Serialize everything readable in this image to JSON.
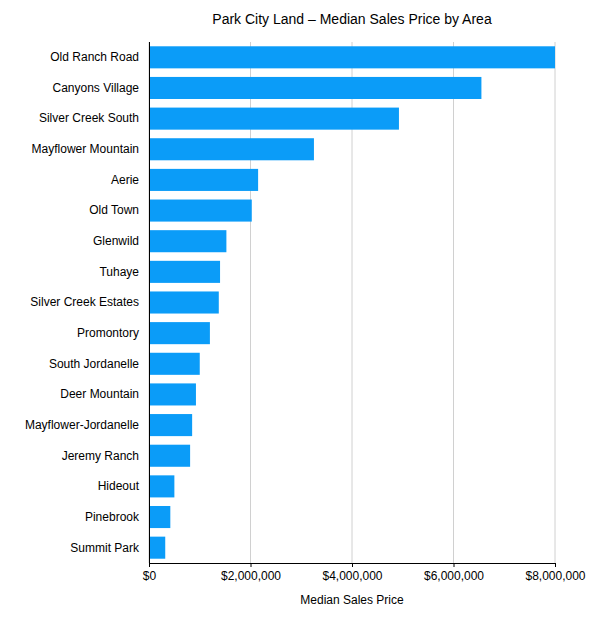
{
  "chart_data": {
    "type": "bar",
    "orientation": "horizontal",
    "title": "Park City Land – Median Sales Price by Area",
    "xlabel": "Median Sales Price",
    "categories": [
      "Old Ranch Road",
      "Canyons Village",
      "Silver Creek South",
      "Mayflower Mountain",
      "Aerie",
      "Old Town",
      "Glenwild",
      "Tuhaye",
      "Silver Creek Estates",
      "Promontory",
      "South Jordanelle",
      "Deer Mountain",
      "Mayflower-Jordanelle",
      "Jeremy Ranch",
      "Hideout",
      "Pinebrook",
      "Summit Park"
    ],
    "values": [
      8000000,
      6550000,
      4925000,
      3250000,
      2150000,
      2025000,
      1525000,
      1400000,
      1375000,
      1200000,
      1000000,
      925000,
      850000,
      810000,
      500000,
      420000,
      320000
    ],
    "color": "#0b9cf8",
    "xlim": [
      0,
      8000000
    ],
    "xticks": [
      {
        "value": 0,
        "label": "$0"
      },
      {
        "value": 2000000,
        "label": "$2,000,000"
      },
      {
        "value": 4000000,
        "label": "$4,000,000"
      },
      {
        "value": 6000000,
        "label": "$6,000,000"
      },
      {
        "value": 8000000,
        "label": "$8,000,000"
      }
    ],
    "grid": true
  }
}
